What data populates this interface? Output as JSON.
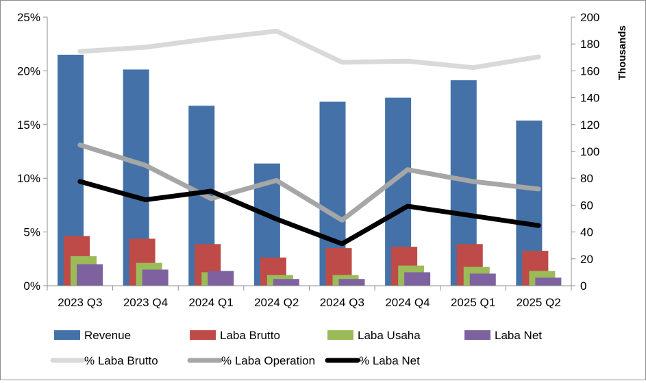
{
  "chart_data": {
    "type": "bar",
    "categories": [
      "2023 Q3",
      "2023 Q4",
      "2024 Q1",
      "2024 Q2",
      "2024 Q3",
      "2024 Q4",
      "2025 Q1",
      "2025 Q2"
    ],
    "series": [
      {
        "name": "Revenue",
        "kind": "bar",
        "axis": "right",
        "color": "#4472a8",
        "values": [
          172,
          161,
          134,
          91,
          137,
          140,
          153,
          123
        ]
      },
      {
        "name": "Laba Brutto",
        "kind": "bar",
        "axis": "right",
        "color": "#be4b48",
        "values": [
          37,
          35,
          31,
          21,
          28,
          29,
          31,
          26
        ]
      },
      {
        "name": "Laba Usaha",
        "kind": "bar",
        "axis": "right",
        "color": "#9bbb59",
        "values": [
          22,
          17,
          10,
          8,
          8,
          15,
          14,
          11
        ]
      },
      {
        "name": "Laba Net",
        "kind": "bar",
        "axis": "right",
        "color": "#7e62a0",
        "values": [
          16,
          12,
          11,
          5,
          5,
          10,
          9,
          6
        ]
      },
      {
        "name": "% Laba Brutto",
        "kind": "line",
        "axis": "left",
        "color": "#d9d9d9",
        "values": [
          21.8,
          22.2,
          23.0,
          23.7,
          20.8,
          20.9,
          20.3,
          21.3
        ]
      },
      {
        "name": "% Laba Operation",
        "kind": "line",
        "axis": "left",
        "color": "#a6a6a6",
        "values": [
          13.1,
          11.2,
          8.1,
          9.8,
          6.1,
          10.8,
          9.7,
          9.0
        ]
      },
      {
        "name": "% Laba Net",
        "kind": "line",
        "axis": "left",
        "color": "#000000",
        "values": [
          9.7,
          8.0,
          8.8,
          6.2,
          3.9,
          7.4,
          6.5,
          5.6
        ]
      }
    ],
    "left_axis": {
      "ylim": [
        0,
        25
      ],
      "ticks": [
        "0%",
        "5%",
        "10%",
        "15%",
        "20%",
        "25%"
      ]
    },
    "right_axis": {
      "ylim": [
        0,
        200
      ],
      "ticks": [
        "0",
        "20",
        "40",
        "60",
        "80",
        "100",
        "120",
        "140",
        "160",
        "180",
        "200"
      ],
      "label": "Thousands"
    },
    "grid": false,
    "legend": "bottom"
  }
}
